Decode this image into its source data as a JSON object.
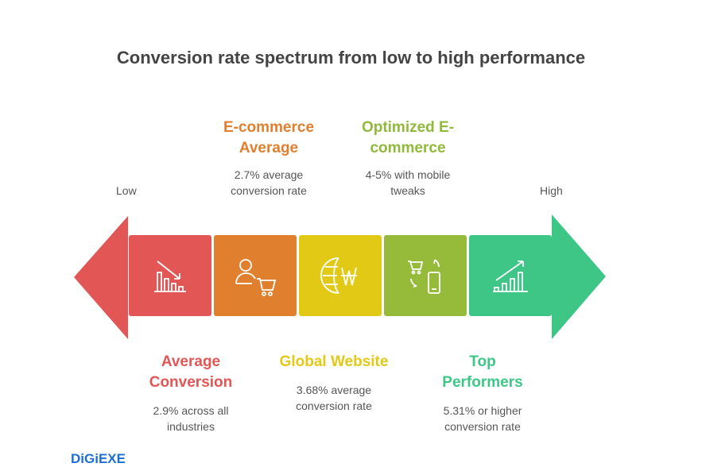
{
  "title": "Conversion rate spectrum from low to high performance",
  "scale": {
    "low": "Low",
    "high": "High"
  },
  "stages": [
    {
      "heading": "Average Conversion",
      "heading_lines": [
        "Average",
        "Conversion"
      ],
      "desc_lines": [
        "2.9% across all",
        "industries"
      ],
      "color": "#e25656",
      "icon": "declining-bar-chart-icon"
    },
    {
      "heading_lines": [
        "E-commerce",
        "Average"
      ],
      "desc_lines": [
        "2.7% average",
        "conversion rate"
      ],
      "color": "#e0802f",
      "icon": "user-shopping-cart-icon"
    },
    {
      "heading_lines": [
        "Global Website"
      ],
      "desc_lines": [
        "3.68% average",
        "conversion rate"
      ],
      "color": "#e2c916",
      "icon": "globe-currency-icon"
    },
    {
      "heading_lines": [
        "Optimized E-",
        "commerce"
      ],
      "desc_lines": [
        "4-5% with mobile",
        "tweaks"
      ],
      "color": "#96bb3a",
      "icon": "cart-mobile-sync-icon"
    },
    {
      "heading_lines": [
        "Top",
        "Performers"
      ],
      "desc_lines": [
        "5.31% or higher",
        "conversion rate"
      ],
      "color": "#3ec687",
      "icon": "rising-bar-chart-icon"
    }
  ],
  "logo": "DiGiEXE"
}
